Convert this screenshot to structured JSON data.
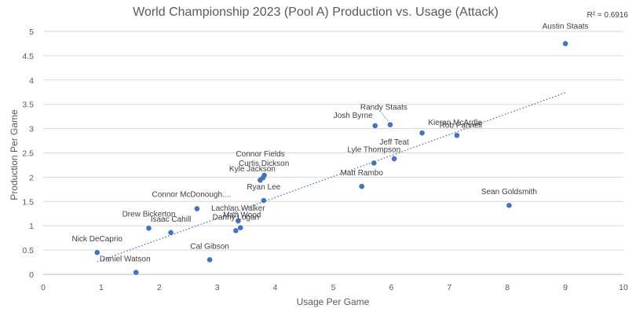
{
  "chart_data": {
    "type": "scatter",
    "title": "World Championship 2023 (Pool A) Production vs. Usage (Attack)",
    "xlabel": "Usage Per Game",
    "ylabel": "Production Per Game",
    "xlim": [
      0,
      10
    ],
    "ylim": [
      0,
      5
    ],
    "x_ticks": [
      "0",
      "1",
      "2",
      "3",
      "4",
      "5",
      "6",
      "7",
      "8",
      "9",
      "10"
    ],
    "y_ticks": [
      "0",
      "0.5",
      "1",
      "1.5",
      "2",
      "2.5",
      "3",
      "3.5",
      "4",
      "4.5",
      "5"
    ],
    "grid": "horizontal",
    "r_squared": "R² = 0.6916",
    "trendline": {
      "type": "linear",
      "x": [
        0.93,
        9.0
      ],
      "y": [
        0.26,
        3.74
      ]
    },
    "points": [
      {
        "label": "Austin Staats",
        "x": 9.0,
        "y": 4.75
      },
      {
        "label": "Sean Goldsmith",
        "x": 8.03,
        "y": 1.42
      },
      {
        "label": "Rob Pannell",
        "x": 7.13,
        "y": 2.86
      },
      {
        "label": "Kieran McArdle",
        "x": 6.53,
        "y": 2.91
      },
      {
        "label": "Jeff Teat",
        "x": 6.05,
        "y": 2.38
      },
      {
        "label": "Randy Staats",
        "x": 5.98,
        "y": 3.08
      },
      {
        "label": "Josh Byrne",
        "x": 5.72,
        "y": 3.06
      },
      {
        "label": "Lyle Thompson",
        "x": 5.7,
        "y": 2.29
      },
      {
        "label": "Matt Rambo",
        "x": 5.49,
        "y": 1.81
      },
      {
        "label": "Connor Fields",
        "x": 3.81,
        "y": 2.04
      },
      {
        "label": "Curtis Dickson",
        "x": 3.79,
        "y": 1.99
      },
      {
        "label": "Kyle Jackson",
        "x": 3.74,
        "y": 1.94
      },
      {
        "label": "Ryan Lee",
        "x": 3.8,
        "y": 1.52
      },
      {
        "label": "Connor McDonough....",
        "x": 2.65,
        "y": 1.35
      },
      {
        "label": "Lachlan Walker",
        "x": 3.36,
        "y": 1.1
      },
      {
        "label": "Matt Wood",
        "x": 3.4,
        "y": 0.96
      },
      {
        "label": "Danny Logan",
        "x": 3.32,
        "y": 0.9
      },
      {
        "label": "Drew Bickerton",
        "x": 1.82,
        "y": 0.95
      },
      {
        "label": "Isaac Cahill",
        "x": 2.2,
        "y": 0.86
      },
      {
        "label": "Cal Gibson",
        "x": 2.87,
        "y": 0.3
      },
      {
        "label": "Nick DeCaprio",
        "x": 0.93,
        "y": 0.45
      },
      {
        "label": "Daniel Watson",
        "x": 1.6,
        "y": 0.04
      }
    ]
  }
}
